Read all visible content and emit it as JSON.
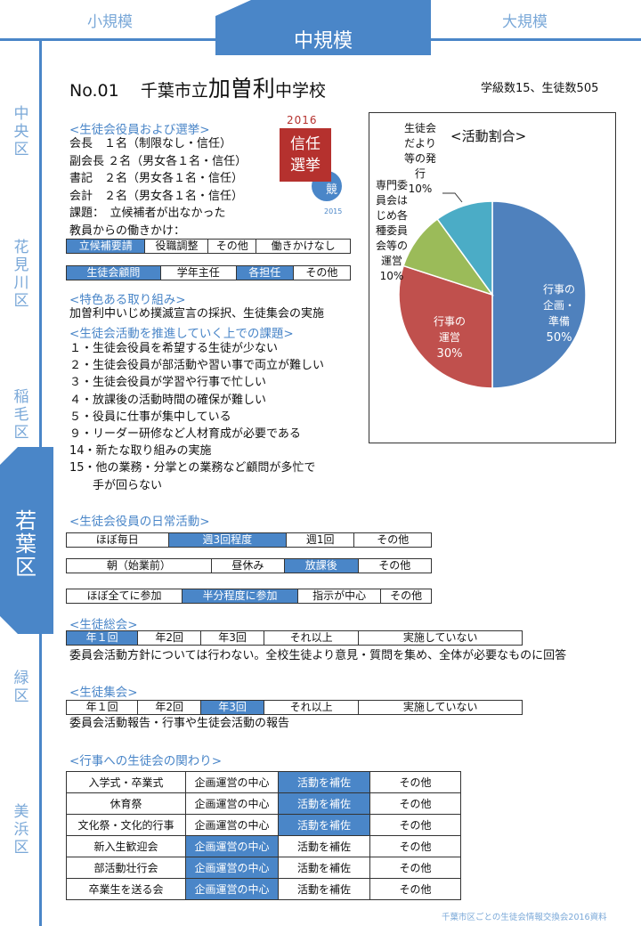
{
  "tabs": {
    "small": "小規模",
    "medium": "中規模",
    "large": "大規模"
  },
  "wards": [
    {
      "name": "中央区",
      "chars": [
        "中",
        "央",
        "区"
      ]
    },
    {
      "name": "花見川区",
      "chars": [
        "花",
        "見",
        "川",
        "区"
      ]
    },
    {
      "name": "稲毛区",
      "chars": [
        "稲",
        "毛",
        "区"
      ]
    },
    {
      "name": "若葉区",
      "chars": [
        "若",
        "葉",
        "区"
      ]
    },
    {
      "name": "緑区",
      "chars": [
        "緑",
        "区"
      ]
    },
    {
      "name": "美浜区",
      "chars": [
        "美",
        "浜",
        "区"
      ]
    }
  ],
  "school": {
    "no": "No.01",
    "prefix": "千葉市立",
    "name": "加曽利",
    "suffix": "中学校",
    "stats": "学級数15、生徒数505"
  },
  "election": {
    "title": "<生徒会役員および選挙>",
    "year": "2016",
    "badge_line1": "信任",
    "badge_line2": "選挙",
    "circle_char": "競",
    "circle_year": "2015",
    "lines": [
      "会長　１名（制限なし・信任）",
      "副会長 ２名（男女各１名・信任）",
      "書記　２名（男女各１名・信任）",
      "会計　２名（男女各１名・信任）",
      "課題：　立候補者が出なかった",
      "教員からの働きかけ："
    ],
    "teacher_row1": [
      "立候補要請",
      "役職調整",
      "その他",
      "働きかけなし"
    ],
    "teacher_row1_sel": [
      0
    ],
    "teacher_row2": [
      "生徒会顧問",
      "学年主任",
      "各担任",
      "その他"
    ],
    "teacher_row2_sel": [
      0,
      2
    ]
  },
  "features": {
    "title": "<特色ある取り組み>",
    "text": "加曽利中いじめ撲滅宣言の採択、生徒集会の実施"
  },
  "issues": {
    "title": "<生徒会活動を推進していく上での課題>",
    "items": [
      "１・生徒会役員を希望する生徒が少ない",
      "２・生徒会役員が部活動や習い事で両立が難しい",
      "３・生徒会役員が学習や行事で忙しい",
      "４・放課後の活動時間の確保が難しい",
      "５・役員に仕事が集中している",
      "９・リーダー研修など人材育成が必要である",
      "14・新たな取り組みの実施",
      "15・他の業務・分掌との業務など顧問が多忙で",
      "　　手が回らない"
    ]
  },
  "daily": {
    "title": "<生徒会役員の日常活動>",
    "rows": [
      {
        "cells": [
          "ほぼ毎日",
          "週3回程度",
          "週1回",
          "その他"
        ],
        "sel": [
          1
        ]
      },
      {
        "cells": [
          "朝（始業前）",
          "昼休み",
          "放課後",
          "その他"
        ],
        "sel": [
          2
        ]
      },
      {
        "cells": [
          "ほぼ全てに参加",
          "半分程度に参加",
          "指示が中心",
          "その他"
        ],
        "sel": [
          1
        ]
      }
    ]
  },
  "assembly": {
    "title": "<生徒総会>",
    "cells": [
      "年１回",
      "年2回",
      "年3回",
      "それ以上",
      "実施していない"
    ],
    "sel": [
      0
    ],
    "note": "委員会活動方針については行わない。全校生徒より意見・質問を集め、全体が必要なものに回答"
  },
  "meeting": {
    "title": "<生徒集会>",
    "cells": [
      "年１回",
      "年2回",
      "年3回",
      "それ以上",
      "実施していない"
    ],
    "sel": [
      2
    ],
    "note": "委員会活動報告・行事や生徒会活動の報告"
  },
  "events": {
    "title": "<行事への生徒会の関わり>",
    "columns": [
      "企画運営の中心",
      "活動を補佐",
      "その他"
    ],
    "rows": [
      {
        "name": "入学式・卒業式",
        "sel": 1
      },
      {
        "name": "休育祭",
        "sel": 1
      },
      {
        "name": "文化祭・文化的行事",
        "sel": 1
      },
      {
        "name": "新入生歓迎会",
        "sel": 0
      },
      {
        "name": "部活動壮行会",
        "sel": 0
      },
      {
        "name": "卒業生を送る会",
        "sel": 0
      }
    ]
  },
  "footer": "千葉市区ごとの生徒会情報交換会2016資料",
  "colors": {
    "accent": "#4a86c8",
    "badge": "#b5312e",
    "slice_blue": "#4f81bd",
    "slice_red": "#c0504d",
    "slice_green": "#9bbb59",
    "slice_teal": "#4bacc6"
  },
  "chart_data": {
    "type": "pie",
    "title": "<活動割合>",
    "slices": [
      {
        "label": "行事の企画・準備",
        "value": 50,
        "pct": "50%",
        "color": "#4f81bd"
      },
      {
        "label": "行事の運営",
        "value": 30,
        "pct": "30%",
        "color": "#c0504d"
      },
      {
        "label": "専門委員会はじめ各種委員会等の運営",
        "value": 10,
        "pct": "10%",
        "color": "#9bbb59"
      },
      {
        "label": "生徒会だより等の発行",
        "value": 10,
        "pct": "10%",
        "color": "#4bacc6"
      }
    ]
  }
}
